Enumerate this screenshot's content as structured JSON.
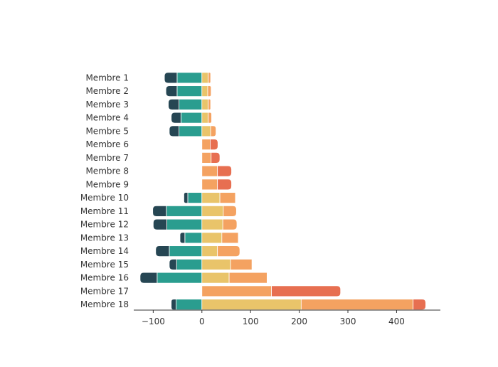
{
  "chart_data": {
    "type": "bar",
    "orientation": "horizontal",
    "stacked": "diverging",
    "title": "",
    "xlabel": "",
    "ylabel": "",
    "categories": [
      "Membre 1",
      "Membre 2",
      "Membre 3",
      "Membre 4",
      "Membre 5",
      "Membre 6",
      "Membre 7",
      "Membre 8",
      "Membre 9",
      "Membre 10",
      "Membre 11",
      "Membre 12",
      "Membre 13",
      "Membre 14",
      "Membre 15",
      "Membre 16",
      "Membre 17",
      "Membre 18"
    ],
    "series": [
      {
        "color": "#264653",
        "values": [
          -26,
          -23,
          -22,
          -20,
          -20,
          0,
          0,
          0,
          0,
          -8,
          -28,
          -28,
          -10,
          -28,
          -15,
          -35,
          0,
          -10
        ]
      },
      {
        "color": "#2a9d8f",
        "values": [
          -51,
          -51,
          -47,
          -43,
          -47,
          0,
          0,
          0,
          0,
          -29,
          -73,
          -72,
          -35,
          -67,
          -52,
          -92,
          0,
          -53
        ]
      },
      {
        "color": "#e9c46a",
        "values": [
          13,
          12,
          13,
          13,
          18,
          0,
          0,
          0,
          0,
          37,
          44,
          43,
          41,
          32,
          59,
          56,
          0,
          204
        ]
      },
      {
        "color": "#f4a261",
        "values": [
          5,
          7,
          5,
          7,
          11,
          17,
          19,
          32,
          32,
          32,
          27,
          29,
          34,
          46,
          44,
          78,
          143,
          230
        ]
      },
      {
        "color": "#e76f51",
        "values": [
          0,
          0,
          0,
          0,
          0,
          16,
          18,
          29,
          29,
          1,
          0,
          0,
          1,
          0,
          1,
          1,
          142,
          26
        ]
      }
    ],
    "xlim": [
      -140,
      490
    ],
    "xticks": [
      -100,
      0,
      100,
      200,
      300,
      400
    ],
    "xtick_labels": [
      "−100",
      "0",
      "100",
      "200",
      "300",
      "400"
    ],
    "grid": false,
    "legend": "none"
  }
}
